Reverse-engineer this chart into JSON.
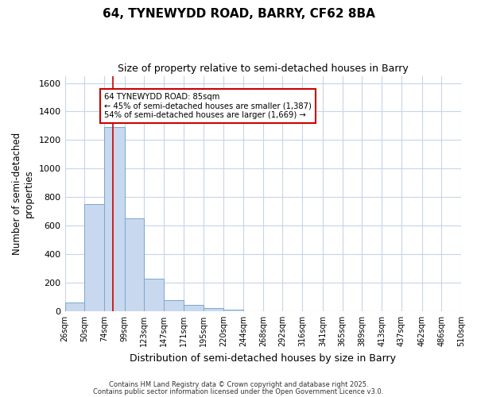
{
  "title1": "64, TYNEWYDD ROAD, BARRY, CF62 8BA",
  "title2": "Size of property relative to semi-detached houses in Barry",
  "xlabel": "Distribution of semi-detached houses by size in Barry",
  "ylabel": "Number of semi-detached\nproperties",
  "bin_labels": [
    "26sqm",
    "50sqm",
    "74sqm",
    "99sqm",
    "123sqm",
    "147sqm",
    "171sqm",
    "195sqm",
    "220sqm",
    "244sqm",
    "268sqm",
    "292sqm",
    "316sqm",
    "341sqm",
    "365sqm",
    "389sqm",
    "413sqm",
    "437sqm",
    "462sqm",
    "486sqm",
    "510sqm"
  ],
  "bin_edges": [
    26,
    50,
    74,
    99,
    123,
    147,
    171,
    195,
    220,
    244,
    268,
    292,
    316,
    341,
    365,
    389,
    413,
    437,
    462,
    486,
    510
  ],
  "values": [
    60,
    750,
    1290,
    650,
    230,
    80,
    45,
    20,
    10,
    0,
    0,
    0,
    0,
    0,
    0,
    0,
    0,
    0,
    0,
    0
  ],
  "bar_color": "#c8d8ee",
  "bar_edge_color": "#7ba7d0",
  "property_size": 85,
  "pct_smaller": 45,
  "n_smaller": "1,387",
  "pct_larger": 54,
  "n_larger": "1,669",
  "vline_color": "#cc0000",
  "ylim": [
    0,
    1650
  ],
  "bg_color": "#ffffff",
  "plot_bg_color": "#ffffff",
  "grid_color": "#c8d4e8",
  "footer_text1": "Contains HM Land Registry data © Crown copyright and database right 2025.",
  "footer_text2": "Contains public sector information licensed under the Open Government Licence v3.0."
}
